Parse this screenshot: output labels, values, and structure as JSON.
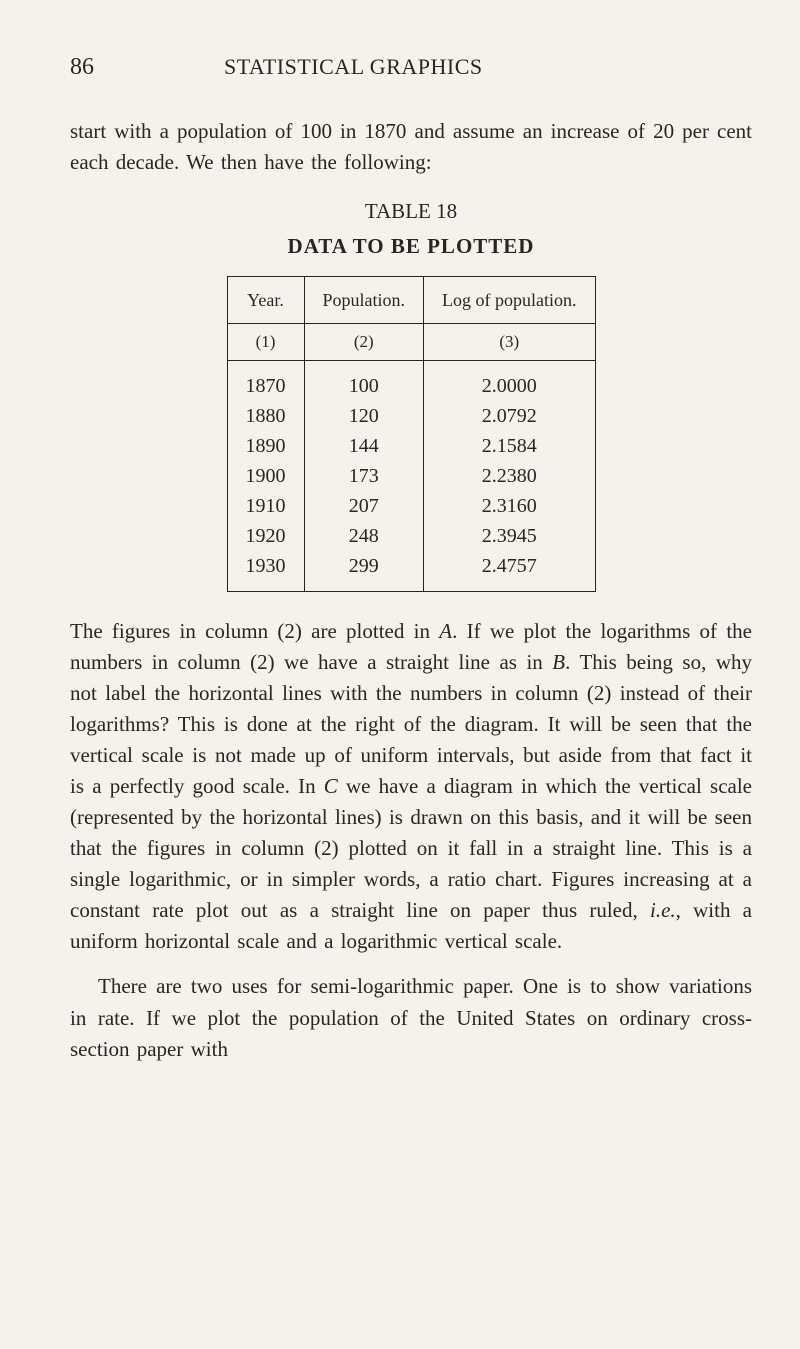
{
  "page_number": "86",
  "running_head": "STATISTICAL GRAPHICS",
  "para1_a": "start with a population of 100 in 1870 and assume an in­crease of 20 per cent each decade.  We then have the following:",
  "table": {
    "caption": "TABLE 18",
    "subcaption": "DATA TO BE PLOTTED",
    "headers": [
      "Year.",
      "Population.",
      "Log of popu­lation."
    ],
    "colnums": [
      "(1)",
      "(2)",
      "(3)"
    ],
    "rows": [
      [
        "1870",
        "100",
        "2.0000"
      ],
      [
        "1880",
        "120",
        "2.0792"
      ],
      [
        "1890",
        "144",
        "2.1584"
      ],
      [
        "1900",
        "173",
        "2.2380"
      ],
      [
        "1910",
        "207",
        "2.3160"
      ],
      [
        "1920",
        "248",
        "2.3945"
      ],
      [
        "1930",
        "299",
        "2.4757"
      ]
    ],
    "border_color": "#2a2522",
    "font_size_header": 18,
    "font_size_body": 20
  },
  "para2_a": "The figures in column (2) are plotted in ",
  "para2_A": "A",
  "para2_b": ".  If we plot the logarithms of the numbers in column (2) we have a straight line as in ",
  "para2_B": "B",
  "para2_c": ".  This being so, why not label the horizontal lines with the numbers in column (2) instead of their logarithms?  This is done at the right of the diagram.  It will be seen that the vertical scale is not made up of uni­form intervals, but aside from that fact it is a perfectly good scale.  In ",
  "para2_C": "C",
  "para2_d": " we have a diagram in which the vertical scale (represented by the horizontal lines) is drawn on this basis, and it will be seen that the figures in column (2) plotted on it fall in a straight line.  This is a single loga­rithmic, or in simpler words, a ratio chart.  Figures increas­ing at a constant rate plot out as a straight line on paper thus ruled, ",
  "para2_ie": "i.e.",
  "para2_e": ", with a uniform horizontal scale and a logarithmic vertical scale.",
  "para3": "There are two uses for semi-logarithmic paper.  One is to show variations in rate.  If we plot the population of the United States on ordinary cross-section paper with",
  "colors": {
    "background": "#f5f2ed",
    "text": "#2a2522"
  }
}
